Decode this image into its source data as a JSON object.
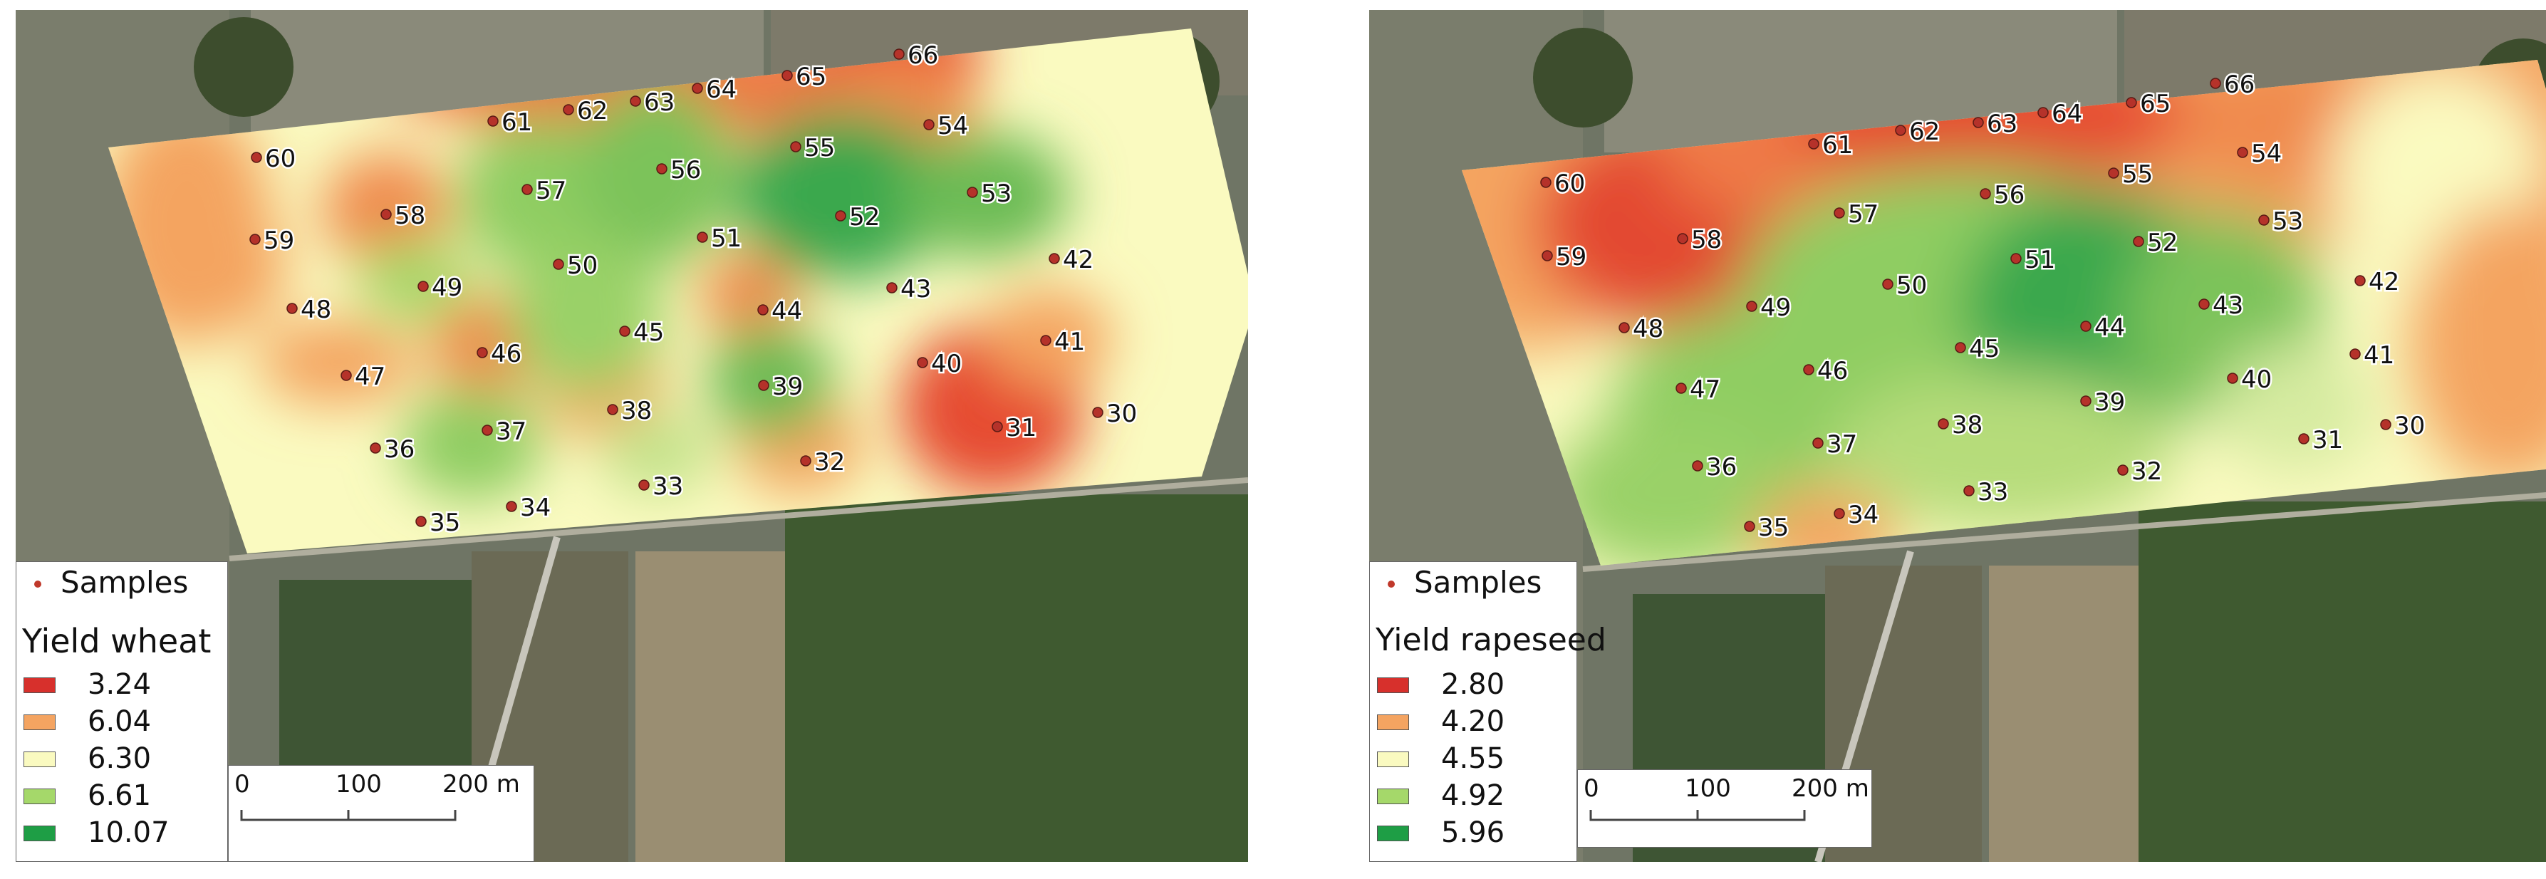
{
  "maps": [
    {
      "legend_samples": "Samples",
      "legend_title": "Yield wheat",
      "classes": [
        {
          "label": "3.24",
          "color": "#d7302c"
        },
        {
          "label": "6.04",
          "color": "#f4a461"
        },
        {
          "label": "6.30",
          "color": "#fafac0"
        },
        {
          "label": "6.61",
          "color": "#a5d86a"
        },
        {
          "label": "10.07",
          "color": "#1e9e45"
        }
      ],
      "scale_labels": [
        "0",
        "100",
        "200 m"
      ],
      "samples": [
        "60",
        "61",
        "62",
        "63",
        "64",
        "65",
        "66",
        "59",
        "58",
        "57",
        "56",
        "55",
        "54",
        "53",
        "52",
        "51",
        "50",
        "49",
        "48",
        "47",
        "46",
        "45",
        "44",
        "43",
        "42",
        "41",
        "40",
        "39",
        "38",
        "37",
        "36",
        "35",
        "34",
        "33",
        "32",
        "31",
        "30"
      ]
    },
    {
      "legend_samples": "Samples",
      "legend_title": "Yield rapeseed",
      "classes": [
        {
          "label": "2.80",
          "color": "#d7302c"
        },
        {
          "label": "4.20",
          "color": "#f4a461"
        },
        {
          "label": "4.55",
          "color": "#fafac0"
        },
        {
          "label": "4.92",
          "color": "#a5d86a"
        },
        {
          "label": "5.96",
          "color": "#1e9e45"
        }
      ],
      "scale_labels": [
        "0",
        "100",
        "200 m"
      ],
      "samples": [
        "60",
        "61",
        "62",
        "63",
        "64",
        "65",
        "66",
        "59",
        "58",
        "57",
        "56",
        "55",
        "54",
        "53",
        "52",
        "51",
        "50",
        "49",
        "48",
        "47",
        "46",
        "45",
        "44",
        "43",
        "42",
        "41",
        "40",
        "39",
        "38",
        "37",
        "36",
        "35",
        "34",
        "33",
        "32",
        "31",
        "30"
      ]
    }
  ]
}
